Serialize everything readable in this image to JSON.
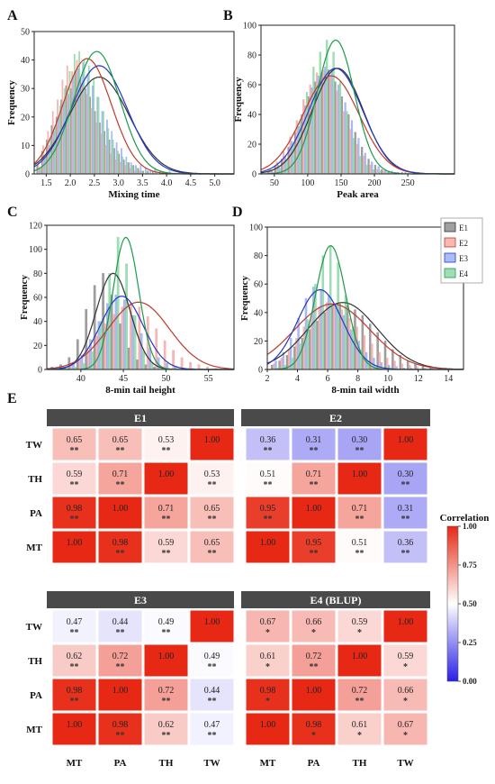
{
  "figure": {
    "panel_letters": [
      "A",
      "B",
      "C",
      "D",
      "E"
    ],
    "frequency_label": "Frequency",
    "group_legend": [
      "E1",
      "E2",
      "E3",
      "E4"
    ],
    "group_colors": [
      "#808080",
      "#f4a09a",
      "#8fa5f0",
      "#7fd39b"
    ],
    "curve_colors": [
      "#333333",
      "#c0392b",
      "#2438c8",
      "#1c9a4b"
    ],
    "correlation_legend": {
      "title": "Correlation",
      "ticks": [
        "1.00",
        "0.75",
        "0.50",
        "0.25",
        "0.00"
      ]
    }
  },
  "chart_data": [
    {
      "type": "bar",
      "panel": "A",
      "xlabel": "Mixing time",
      "ylabel": "Frequency",
      "xlim": [
        1.25,
        5.4
      ],
      "ylim": [
        0,
        50
      ],
      "xticks": [
        "1.5",
        "2.0",
        "2.5",
        "3.0",
        "3.5",
        "4.0",
        "4.5",
        "5.0"
      ],
      "yticks": [
        "0",
        "10",
        "20",
        "30",
        "40",
        "50"
      ],
      "bin_start": 1.3,
      "bin_width": 0.1,
      "series": [
        {
          "name": "E1",
          "values": [
            3,
            8,
            12,
            17,
            20,
            26,
            31,
            30,
            36,
            34,
            30,
            27,
            22,
            18,
            15,
            12,
            9,
            7,
            5,
            4,
            3,
            2,
            1,
            1,
            1,
            0,
            0,
            0,
            0,
            0
          ]
        },
        {
          "name": "E2",
          "values": [
            4,
            10,
            15,
            22,
            26,
            33,
            38,
            36,
            40,
            32,
            28,
            23,
            18,
            14,
            10,
            7,
            5,
            4,
            3,
            2,
            1,
            1,
            0,
            0,
            0,
            0,
            0,
            0,
            0,
            0
          ]
        },
        {
          "name": "E3",
          "values": [
            2,
            6,
            10,
            15,
            20,
            25,
            28,
            34,
            37,
            39,
            35,
            31,
            27,
            22,
            19,
            15,
            11,
            9,
            6,
            4,
            3,
            3,
            2,
            1,
            2,
            1,
            0,
            1,
            0,
            1
          ]
        },
        {
          "name": "E4",
          "values": [
            2,
            7,
            12,
            17,
            24,
            30,
            36,
            42,
            43,
            40,
            38,
            33,
            27,
            22,
            16,
            12,
            8,
            6,
            4,
            3,
            2,
            1,
            1,
            0,
            1,
            0,
            0,
            0,
            0,
            0
          ]
        }
      ],
      "curves": [
        {
          "name": "E1",
          "mean": 2.6,
          "sd": 0.62,
          "peak": 34
        },
        {
          "name": "E2",
          "mean": 2.35,
          "sd": 0.5,
          "peak": 40.5
        },
        {
          "name": "E3",
          "mean": 2.6,
          "sd": 0.58,
          "peak": 38
        },
        {
          "name": "E4",
          "mean": 2.55,
          "sd": 0.48,
          "peak": 43
        }
      ]
    },
    {
      "type": "bar",
      "panel": "B",
      "xlabel": "Peak area",
      "ylabel": "Frequency",
      "xlim": [
        30,
        320
      ],
      "ylim": [
        0,
        100
      ],
      "xticks": [
        "50",
        "100",
        "150",
        "200",
        "250"
      ],
      "yticks": [
        "0",
        "20",
        "40",
        "60",
        "80",
        "100"
      ],
      "bin_start": 40,
      "bin_width": 10,
      "series": [
        {
          "name": "E1",
          "values": [
            2,
            5,
            10,
            18,
            28,
            40,
            52,
            62,
            68,
            70,
            62,
            52,
            40,
            28,
            18,
            10,
            6,
            3,
            2,
            1,
            1,
            0,
            0,
            0
          ]
        },
        {
          "name": "E2",
          "values": [
            3,
            8,
            15,
            25,
            36,
            50,
            60,
            68,
            70,
            66,
            56,
            42,
            30,
            20,
            12,
            6,
            3,
            2,
            1,
            1,
            0,
            0,
            0,
            0
          ]
        },
        {
          "name": "E3",
          "values": [
            2,
            6,
            12,
            22,
            32,
            46,
            58,
            66,
            72,
            70,
            60,
            48,
            36,
            24,
            14,
            8,
            5,
            3,
            2,
            1,
            1,
            0,
            1,
            0
          ]
        },
        {
          "name": "E4",
          "values": [
            1,
            4,
            10,
            20,
            35,
            55,
            72,
            82,
            90,
            82,
            62,
            42,
            24,
            12,
            6,
            3,
            2,
            1,
            0,
            0,
            0,
            0,
            0,
            0
          ]
        }
      ],
      "curves": [
        {
          "name": "E1",
          "mean": 145,
          "sd": 38,
          "peak": 71
        },
        {
          "name": "E2",
          "mean": 135,
          "sd": 42,
          "peak": 66
        },
        {
          "name": "E3",
          "mean": 142,
          "sd": 40,
          "peak": 71
        },
        {
          "name": "E4",
          "mean": 142,
          "sd": 28,
          "peak": 90
        }
      ]
    },
    {
      "type": "bar",
      "panel": "C",
      "xlabel": "8-min tail height",
      "ylabel": "Frequency",
      "xlim": [
        36,
        58
      ],
      "ylim": [
        0,
        120
      ],
      "xticks": [
        "40",
        "45",
        "50",
        "55"
      ],
      "yticks": [
        "0",
        "20",
        "40",
        "60",
        "80",
        "100",
        "120"
      ],
      "bin_start": 36.5,
      "bin_width": 1,
      "series": [
        {
          "name": "E1",
          "values": [
            2,
            4,
            10,
            25,
            50,
            70,
            80,
            62,
            38,
            18,
            8,
            4,
            2,
            1,
            0,
            0,
            0,
            0,
            0,
            0,
            0
          ]
        },
        {
          "name": "E2",
          "values": [
            1,
            2,
            4,
            8,
            16,
            28,
            38,
            46,
            52,
            55,
            52,
            44,
            34,
            24,
            16,
            10,
            6,
            4,
            2,
            1,
            1
          ]
        },
        {
          "name": "E3",
          "values": [
            1,
            2,
            5,
            12,
            25,
            40,
            55,
            62,
            58,
            45,
            30,
            18,
            10,
            5,
            3,
            1,
            1,
            0,
            0,
            0,
            0
          ]
        },
        {
          "name": "E4",
          "values": [
            0,
            1,
            2,
            5,
            15,
            40,
            80,
            110,
            88,
            45,
            15,
            5,
            2,
            1,
            0,
            0,
            0,
            0,
            0,
            0,
            0
          ]
        }
      ],
      "curves": [
        {
          "name": "E1",
          "mean": 43.8,
          "sd": 2.0,
          "peak": 80
        },
        {
          "name": "E2",
          "mean": 46.8,
          "sd": 3.6,
          "peak": 56
        },
        {
          "name": "E3",
          "mean": 44.8,
          "sd": 2.5,
          "peak": 61
        },
        {
          "name": "E4",
          "mean": 45.3,
          "sd": 1.5,
          "peak": 110
        }
      ]
    },
    {
      "type": "bar",
      "panel": "D",
      "xlabel": "8-min tail width",
      "ylabel": "Frequency",
      "xlim": [
        2,
        15
      ],
      "ylim": [
        0,
        100
      ],
      "xticks": [
        "2",
        "4",
        "6",
        "8",
        "10",
        "12",
        "14"
      ],
      "yticks": [
        "0",
        "20",
        "40",
        "60",
        "80",
        "100"
      ],
      "bin_start": 2.25,
      "bin_width": 0.5,
      "series": [
        {
          "name": "E1",
          "values": [
            3,
            6,
            10,
            16,
            22,
            28,
            34,
            40,
            44,
            46,
            45,
            42,
            38,
            32,
            26,
            20,
            14,
            10,
            6,
            4,
            3,
            2,
            1,
            1,
            0,
            0
          ]
        },
        {
          "name": "E2",
          "values": [
            4,
            8,
            14,
            22,
            30,
            38,
            44,
            47,
            46,
            42,
            36,
            30,
            24,
            18,
            12,
            8,
            6,
            4,
            3,
            2,
            1,
            1,
            1,
            0,
            0,
            0
          ]
        },
        {
          "name": "E3",
          "values": [
            6,
            12,
            22,
            36,
            50,
            58,
            56,
            52,
            46,
            38,
            28,
            20,
            12,
            8,
            5,
            3,
            2,
            1,
            1,
            0,
            0,
            0,
            0,
            0,
            0,
            0
          ]
        },
        {
          "name": "E4",
          "values": [
            1,
            3,
            8,
            18,
            35,
            60,
            80,
            87,
            75,
            52,
            30,
            14,
            6,
            3,
            1,
            1,
            0,
            0,
            0,
            0,
            0,
            0,
            0,
            0,
            0,
            0
          ]
        }
      ],
      "curves": [
        {
          "name": "E1",
          "mean": 7.0,
          "sd": 2.3,
          "peak": 47
        },
        {
          "name": "E2",
          "mean": 6.3,
          "sd": 2.5,
          "peak": 46
        },
        {
          "name": "E3",
          "mean": 5.5,
          "sd": 1.5,
          "peak": 56
        },
        {
          "name": "E4",
          "mean": 6.2,
          "sd": 1.0,
          "peak": 87
        }
      ]
    },
    {
      "type": "heatmap",
      "panel": "E",
      "row_labels": [
        "TW",
        "TH",
        "PA",
        "MT"
      ],
      "col_labels": [
        "MT",
        "PA",
        "TH",
        "TW"
      ],
      "color_range": [
        0,
        1
      ],
      "panels": [
        {
          "title": "E1",
          "values": [
            [
              0.65,
              0.65,
              0.53,
              1.0
            ],
            [
              0.59,
              0.71,
              1.0,
              0.53
            ],
            [
              0.98,
              1.0,
              0.71,
              0.65
            ],
            [
              1.0,
              0.98,
              0.59,
              0.65
            ]
          ],
          "labels": [
            [
              "0.65",
              "0.65",
              "0.53",
              "1.00"
            ],
            [
              "0.59",
              "0.71",
              "1.00",
              "0.53"
            ],
            [
              "0.98",
              "1.00",
              "0.71",
              "0.65"
            ],
            [
              "1.00",
              "0.98",
              "0.59",
              "0.65"
            ]
          ],
          "sig": [
            [
              "**",
              "**",
              "**",
              ""
            ],
            [
              "**",
              "**",
              "",
              "**"
            ],
            [
              "**",
              "",
              "**",
              "**"
            ],
            [
              "",
              "**",
              "**",
              "**"
            ]
          ]
        },
        {
          "title": "E2",
          "values": [
            [
              0.36,
              0.31,
              0.3,
              1.0
            ],
            [
              0.51,
              0.71,
              1.0,
              0.3
            ],
            [
              0.95,
              1.0,
              0.71,
              0.31
            ],
            [
              1.0,
              0.95,
              0.51,
              0.36
            ]
          ],
          "labels": [
            [
              "0.36",
              "0.31",
              "0.30",
              "1.00"
            ],
            [
              "0.51",
              "0.71",
              "1.00",
              "0.30"
            ],
            [
              "0.95",
              "1.00",
              "0.71",
              "0.31"
            ],
            [
              "1.00",
              "0.95",
              "0.51",
              "0.36"
            ]
          ],
          "sig": [
            [
              "**",
              "**",
              "**",
              ""
            ],
            [
              "**",
              "**",
              "",
              "**"
            ],
            [
              "**",
              "",
              "**",
              "**"
            ],
            [
              "",
              "**",
              "**",
              "**"
            ]
          ]
        },
        {
          "title": "E3",
          "values": [
            [
              0.47,
              0.44,
              0.49,
              1.0
            ],
            [
              0.62,
              0.72,
              1.0,
              0.49
            ],
            [
              0.98,
              1.0,
              0.72,
              0.44
            ],
            [
              1.0,
              0.98,
              0.62,
              0.47
            ]
          ],
          "labels": [
            [
              "0.47",
              "0.44",
              "0.49",
              "1.00"
            ],
            [
              "0.62",
              "0.72",
              "1.00",
              "0.49"
            ],
            [
              "0.98",
              "1.00",
              "0.72",
              "0.44"
            ],
            [
              "1.00",
              "0.98",
              "0.62",
              "0.47"
            ]
          ],
          "sig": [
            [
              "**",
              "**",
              "**",
              ""
            ],
            [
              "**",
              "**",
              "",
              "**"
            ],
            [
              "**",
              "",
              "**",
              "**"
            ],
            [
              "",
              "**",
              "**",
              "**"
            ]
          ]
        },
        {
          "title": "E4 (BLUP)",
          "values": [
            [
              0.67,
              0.66,
              0.59,
              1.0
            ],
            [
              0.61,
              0.72,
              1.0,
              0.59
            ],
            [
              0.98,
              1.0,
              0.72,
              0.66
            ],
            [
              1.0,
              0.98,
              0.61,
              0.67
            ]
          ],
          "labels": [
            [
              "0.67",
              "0.66",
              "0.59",
              "1.00"
            ],
            [
              "0.61",
              "0.72",
              "1.00",
              "0.59"
            ],
            [
              "0.98",
              "1.00",
              "0.72",
              "0.66"
            ],
            [
              "1.00",
              "0.98",
              "0.61",
              "0.67"
            ]
          ],
          "sig": [
            [
              "*",
              "*",
              "*",
              ""
            ],
            [
              "*",
              "**",
              "",
              "*"
            ],
            [
              "*",
              "",
              "**",
              "*"
            ],
            [
              "",
              "*",
              "*",
              "*"
            ]
          ]
        }
      ]
    }
  ]
}
